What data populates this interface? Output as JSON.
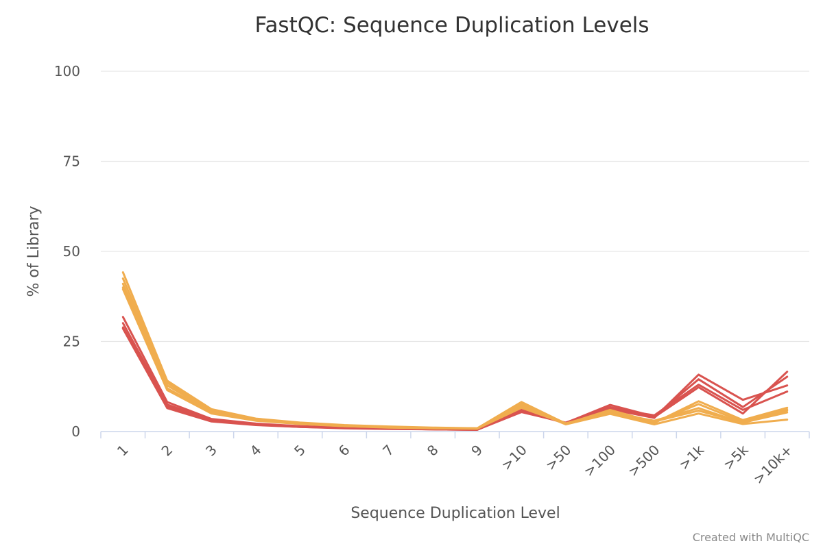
{
  "chart_data": {
    "type": "line",
    "title": "FastQC: Sequence Duplication Levels",
    "xlabel": "Sequence Duplication Level",
    "ylabel": "% of Library",
    "credit": "Created with MultiQC",
    "categories": [
      "1",
      "2",
      "3",
      "4",
      "5",
      "6",
      "7",
      "8",
      "9",
      ">10",
      ">50",
      ">100",
      ">500",
      ">1k",
      ">5k",
      ">10k+"
    ],
    "ylim": [
      0,
      100
    ],
    "yticks": [
      0,
      25,
      50,
      75,
      100
    ],
    "grid": true,
    "legend": "none",
    "colors": {
      "red": "#d9534f",
      "orange": "#f0ad4e",
      "grid": "#e6e6e6",
      "axis": "#ccd6eb",
      "text": "#555555",
      "title": "#333333"
    },
    "series": [
      {
        "color": "#d9534f",
        "values": [
          31.8,
          8.2,
          3.5,
          2.2,
          1.5,
          1.1,
          0.9,
          0.7,
          0.6,
          5.8,
          2.3,
          6.2,
          3.8,
          15.8,
          8.8,
          12.8
        ]
      },
      {
        "color": "#d9534f",
        "values": [
          30.1,
          7.5,
          3.2,
          2.0,
          1.4,
          1.0,
          0.8,
          0.6,
          0.5,
          6.0,
          2.4,
          7.4,
          4.2,
          14.5,
          6.8,
          15.2
        ]
      },
      {
        "color": "#d9534f",
        "values": [
          28.6,
          6.5,
          2.8,
          1.8,
          1.3,
          0.9,
          0.7,
          0.6,
          0.5,
          5.4,
          2.5,
          6.8,
          4.0,
          12.3,
          5.0,
          16.6
        ]
      },
      {
        "color": "#d9534f",
        "values": [
          28.9,
          7.0,
          3.0,
          1.9,
          1.3,
          1.0,
          0.8,
          0.6,
          0.5,
          5.6,
          2.4,
          6.5,
          4.5,
          13.0,
          6.0,
          11.1
        ]
      },
      {
        "color": "#f0ad4e",
        "values": [
          44.2,
          14.1,
          6.2,
          3.6,
          2.5,
          1.8,
          1.4,
          1.1,
          0.9,
          8.2,
          2.2,
          5.5,
          2.4,
          8.4,
          3.2,
          6.6
        ]
      },
      {
        "color": "#f0ad4e",
        "values": [
          42.5,
          13.5,
          5.9,
          3.4,
          2.4,
          1.7,
          1.3,
          1.0,
          0.9,
          7.9,
          2.1,
          6.0,
          2.6,
          7.6,
          2.7,
          6.1
        ]
      },
      {
        "color": "#f0ad4e",
        "values": [
          41.0,
          12.8,
          5.6,
          3.3,
          2.3,
          1.6,
          1.2,
          1.0,
          0.8,
          7.5,
          2.3,
          5.2,
          3.0,
          6.5,
          2.4,
          5.8
        ]
      },
      {
        "color": "#f0ad4e",
        "values": [
          40.0,
          12.0,
          5.3,
          3.1,
          2.2,
          1.5,
          1.2,
          0.9,
          0.8,
          7.0,
          2.0,
          4.9,
          2.0,
          5.0,
          2.1,
          3.3
        ]
      },
      {
        "color": "#f0ad4e",
        "values": [
          39.5,
          11.5,
          5.0,
          3.0,
          2.1,
          1.5,
          1.1,
          0.9,
          0.8,
          6.6,
          2.2,
          5.7,
          2.8,
          5.8,
          2.5,
          5.3
        ]
      }
    ]
  }
}
